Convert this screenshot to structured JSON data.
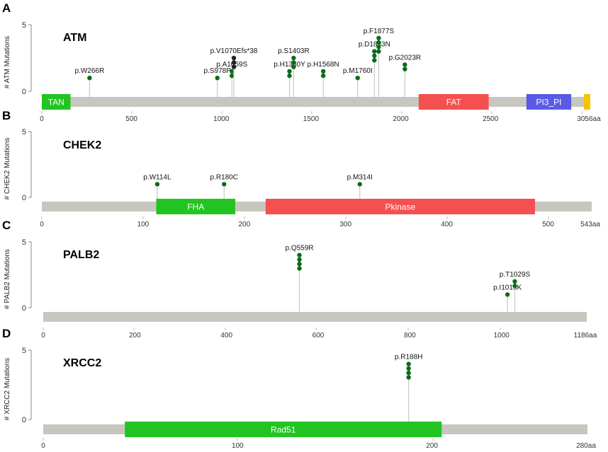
{
  "chart_data": [
    {
      "type": "lollipop",
      "panel": "A",
      "title": "ATM",
      "ylabel": "# ATM Mutations",
      "y_ticks": [
        0,
        5
      ],
      "ylim": [
        0,
        5
      ],
      "length": 3056,
      "x_ticks": [
        0,
        500,
        1000,
        1500,
        2000,
        2500
      ],
      "end_label": "3056aa",
      "domains": [
        {
          "name": "TAN",
          "start": 0,
          "end": 160,
          "color": "#22c422"
        },
        {
          "name": "FAT",
          "start": 2100,
          "end": 2490,
          "color": "#f55050"
        },
        {
          "name": "PI3_PI",
          "start": 2700,
          "end": 2950,
          "color": "#5a5ae6"
        },
        {
          "name": "",
          "start": 3020,
          "end": 3056,
          "color": "#f5c400"
        }
      ],
      "mutations": [
        {
          "label": "p.W266R",
          "pos": 266,
          "count": 1,
          "color": "#0b6b1a"
        },
        {
          "label": "p.S978P",
          "pos": 978,
          "count": 1,
          "color": "#0b6b1a"
        },
        {
          "label": "p.A1059S",
          "pos": 1059,
          "count": 1.5,
          "color": "#0b6b1a"
        },
        {
          "label": "p.V1070Efs*38",
          "pos": 1070,
          "count": 2.5,
          "color": "#222222"
        },
        {
          "label": "p.H1380Y",
          "pos": 1380,
          "count": 1.5,
          "color": "#0b6b1a"
        },
        {
          "label": "p.S1403R",
          "pos": 1403,
          "count": 2.5,
          "color": "#0b6b1a"
        },
        {
          "label": "p.H1568N",
          "pos": 1568,
          "count": 1.5,
          "color": "#0b6b1a"
        },
        {
          "label": "p.M1760I",
          "pos": 1760,
          "count": 1,
          "color": "#0b6b1a"
        },
        {
          "label": "p.D1853N",
          "pos": 1853,
          "count": 3,
          "color": "#0b6b1a"
        },
        {
          "label": "p.F1877S",
          "pos": 1877,
          "count": 4,
          "color": "#0b6b1a"
        },
        {
          "label": "p.G2023R",
          "pos": 2023,
          "count": 2,
          "color": "#0b6b1a"
        }
      ]
    },
    {
      "type": "lollipop",
      "panel": "B",
      "title": "CHEK2",
      "ylabel": "# CHEK2 Mutations",
      "y_ticks": [
        0,
        5
      ],
      "ylim": [
        0,
        5
      ],
      "length": 543,
      "x_ticks": [
        0,
        100,
        200,
        300,
        400,
        500
      ],
      "end_label": "543aa",
      "domains": [
        {
          "name": "FHA",
          "start": 113,
          "end": 191,
          "color": "#22c422"
        },
        {
          "name": "Pkinase",
          "start": 221,
          "end": 487,
          "color": "#f55050"
        }
      ],
      "mutations": [
        {
          "label": "p.W114L",
          "pos": 114,
          "count": 1,
          "color": "#0b6b1a"
        },
        {
          "label": "p.R180C",
          "pos": 180,
          "count": 1,
          "color": "#0b6b1a"
        },
        {
          "label": "p.M314I",
          "pos": 314,
          "count": 1,
          "color": "#0b6b1a"
        }
      ]
    },
    {
      "type": "lollipop",
      "panel": "C",
      "title": "PALB2",
      "ylabel": "# PALB2 Mutations",
      "y_ticks": [
        0,
        5
      ],
      "ylim": [
        0,
        5
      ],
      "length": 1186,
      "x_ticks": [
        0,
        200,
        400,
        600,
        800,
        1000
      ],
      "end_label": "1186aa",
      "domains": [],
      "mutations": [
        {
          "label": "p.Q559R",
          "pos": 559,
          "count": 4,
          "color": "#0b6b1a"
        },
        {
          "label": "p.I1013K",
          "pos": 1013,
          "count": 1,
          "color": "#0b6b1a"
        },
        {
          "label": "p.T1029S",
          "pos": 1029,
          "count": 2,
          "color": "#0b6b1a"
        }
      ]
    },
    {
      "type": "lollipop",
      "panel": "D",
      "title": "XRCC2",
      "ylabel": "# XRCC2 Mutations",
      "y_ticks": [
        0,
        5
      ],
      "ylim": [
        0,
        5
      ],
      "length": 280,
      "x_ticks": [
        0,
        100,
        200
      ],
      "end_label": "280aa",
      "domains": [
        {
          "name": "Rad51",
          "start": 42,
          "end": 205,
          "color": "#22c422"
        }
      ],
      "mutations": [
        {
          "label": "p.R188H",
          "pos": 188,
          "count": 4,
          "color": "#0b6b1a"
        }
      ]
    }
  ]
}
